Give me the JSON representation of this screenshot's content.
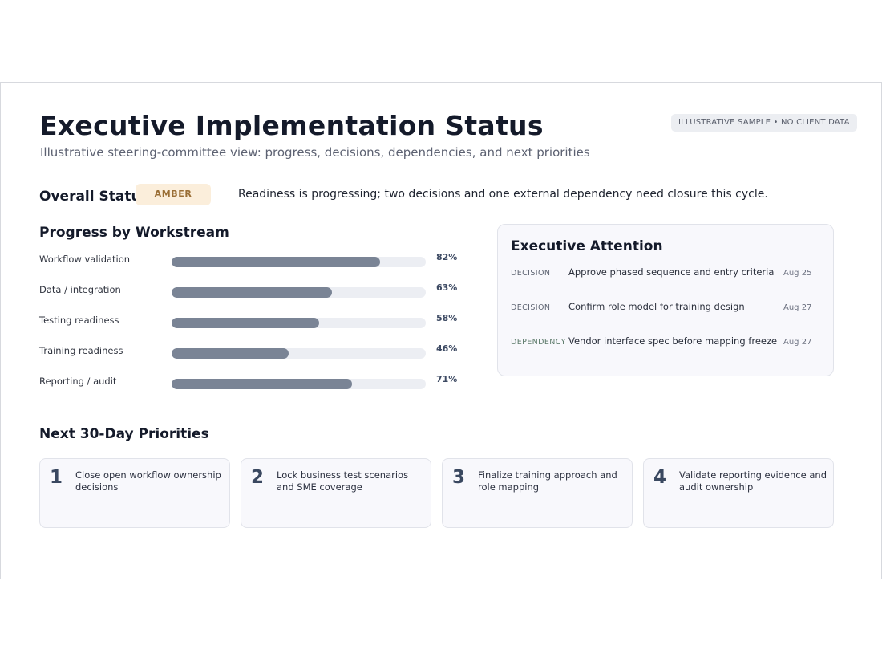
{
  "header": {
    "title": "Executive Implementation Status",
    "subtitle": "Illustrative steering-committee view: progress, decisions, dependencies, and next priorities",
    "badge": "ILLUSTRATIVE SAMPLE • NO CLIENT DATA"
  },
  "overall": {
    "label": "Overall Status",
    "status": "AMBER",
    "status_color": "#fbeedb",
    "summary": "Readiness is progressing; two decisions and one external dependency need closure this cycle."
  },
  "progress": {
    "title": "Progress by Workstream",
    "items": [
      {
        "label": "Workflow validation",
        "value": 82,
        "display": "82%"
      },
      {
        "label": "Data / integration",
        "value": 63,
        "display": "63%"
      },
      {
        "label": "Testing readiness",
        "value": 58,
        "display": "58%"
      },
      {
        "label": "Training readiness",
        "value": 46,
        "display": "46%"
      },
      {
        "label": "Reporting / audit",
        "value": 71,
        "display": "71%"
      }
    ]
  },
  "attention": {
    "title": "Executive Attention",
    "items": [
      {
        "type": "DECISION",
        "text": "Approve phased sequence and entry criteria",
        "date": "Aug 25"
      },
      {
        "type": "DECISION",
        "text": "Confirm role model for training design",
        "date": "Aug 27"
      },
      {
        "type": "DEPENDENCY",
        "text": "Vendor interface spec before mapping freeze",
        "date": "Aug 27"
      }
    ]
  },
  "priorities": {
    "title": "Next 30-Day Priorities",
    "items": [
      {
        "num": "1",
        "text": "Close open workflow ownership decisions"
      },
      {
        "num": "2",
        "text": "Lock business test scenarios and SME coverage"
      },
      {
        "num": "3",
        "text": "Finalize training approach and role mapping"
      },
      {
        "num": "4",
        "text": "Validate reporting evidence and audit ownership"
      }
    ]
  }
}
